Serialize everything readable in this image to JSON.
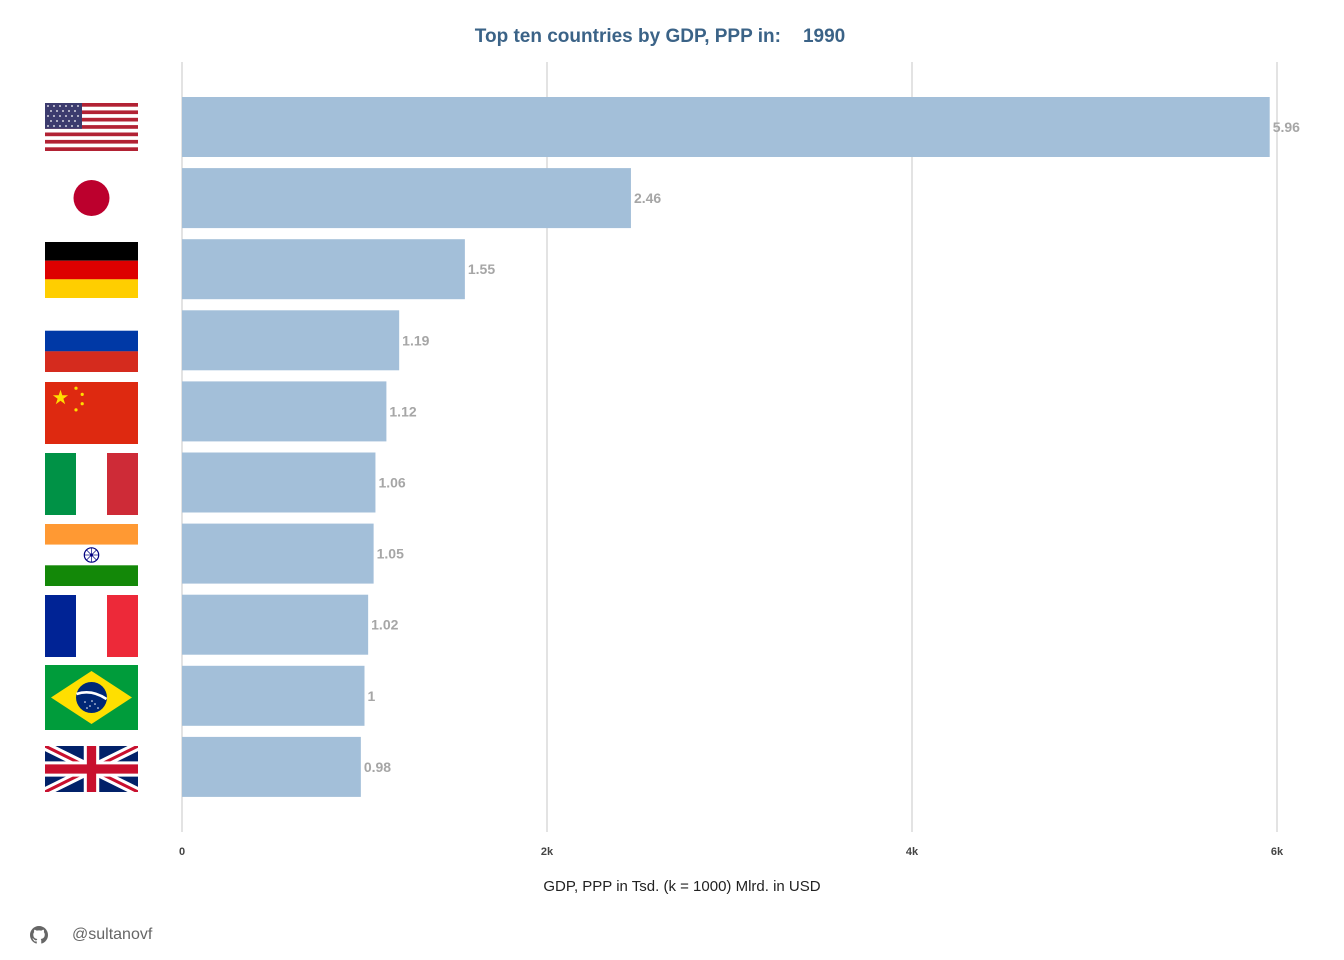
{
  "chart_data": {
    "type": "bar",
    "orientation": "horizontal",
    "title": "Top ten countries by GDP, PPP in:",
    "year": "1990",
    "xlabel": "GDP, PPP in Tsd. (k = 1000) Mlrd. in USD",
    "xlim": [
      0,
      6
    ],
    "ticks": [
      {
        "value": 0,
        "label": "0"
      },
      {
        "value": 2,
        "label": "2k"
      },
      {
        "value": 4,
        "label": "4k"
      },
      {
        "value": 6,
        "label": "6k"
      }
    ],
    "grid": true,
    "bar_color": "#a3bfd9",
    "rows": [
      {
        "flag": "usa-flag-icon",
        "value": 5.96,
        "label": "5.96"
      },
      {
        "flag": "japan-flag-icon",
        "value": 2.46,
        "label": "2.46"
      },
      {
        "flag": "germany-flag-icon",
        "value": 1.55,
        "label": "1.55"
      },
      {
        "flag": "russia-flag-icon",
        "value": 1.19,
        "label": "1.19"
      },
      {
        "flag": "china-flag-icon",
        "value": 1.12,
        "label": "1.12"
      },
      {
        "flag": "italy-flag-icon",
        "value": 1.06,
        "label": "1.06"
      },
      {
        "flag": "india-flag-icon",
        "value": 1.05,
        "label": "1.05"
      },
      {
        "flag": "france-flag-icon",
        "value": 1.02,
        "label": "1.02"
      },
      {
        "flag": "brazil-flag-icon",
        "value": 1.0,
        "label": "1"
      },
      {
        "flag": "uk-flag-icon",
        "value": 0.98,
        "label": "0.98"
      }
    ]
  },
  "footer": {
    "icon": "github-icon",
    "handle": "@sultanovf"
  }
}
